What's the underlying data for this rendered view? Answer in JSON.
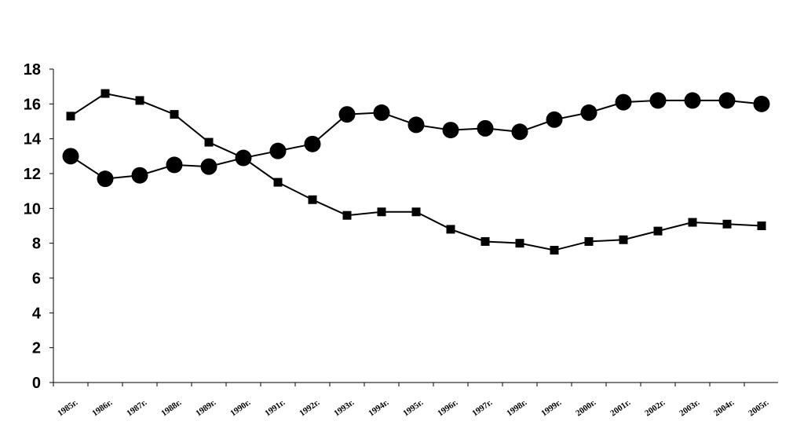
{
  "chart_data": {
    "type": "line",
    "categories": [
      "1985г.",
      "1986г.",
      "1987г.",
      "1988г.",
      "1989г.",
      "1990г.",
      "1991г.",
      "1992г.",
      "1993г.",
      "1994г.",
      "1995г.",
      "1996г.",
      "1997г.",
      "1998г.",
      "1999г.",
      "2000г.",
      "2001г.",
      "2002г.",
      "2003г.",
      "2004г.",
      "2005г."
    ],
    "series": [
      {
        "marker": "circle",
        "color": "#000000",
        "values": [
          13.0,
          11.7,
          11.9,
          12.5,
          12.4,
          12.9,
          13.3,
          13.7,
          15.4,
          15.5,
          14.8,
          14.5,
          14.6,
          14.4,
          15.1,
          15.5,
          16.1,
          16.2,
          16.2,
          16.2,
          16.0
        ]
      },
      {
        "marker": "square",
        "color": "#000000",
        "values": [
          15.3,
          16.6,
          16.2,
          15.4,
          13.8,
          12.9,
          11.5,
          10.5,
          9.6,
          9.8,
          9.8,
          8.8,
          8.1,
          8.0,
          7.6,
          8.1,
          8.2,
          8.7,
          9.2,
          9.1,
          9.0
        ]
      }
    ],
    "yticks": [
      "0",
      "2",
      "4",
      "6",
      "8",
      "10",
      "12",
      "14",
      "16",
      "18"
    ],
    "ylim": [
      0,
      18
    ],
    "grid": false,
    "legend": "none"
  }
}
